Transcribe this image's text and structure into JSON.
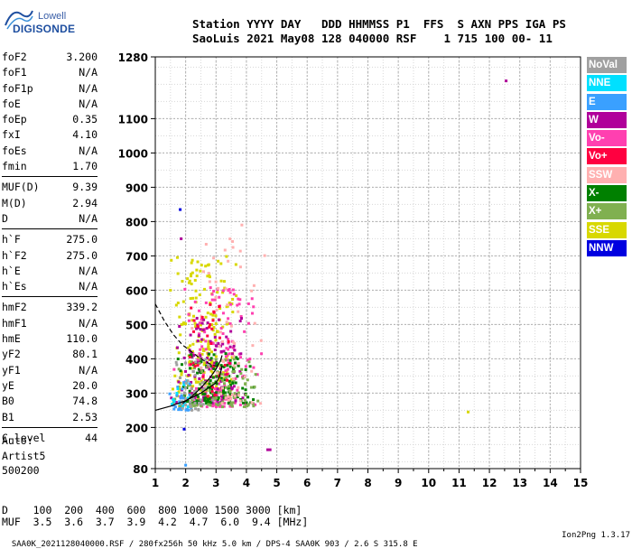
{
  "logo": {
    "line1": "Lowell",
    "line2": "DIGISONDE"
  },
  "header": {
    "line1": "Station YYYY DAY   DDD HHMMSS P1  FFS  S AXN PPS IGA PS",
    "line2": "SaoLuis 2021 May08 128 040000 RSF    1 715 100 00- 11"
  },
  "params": {
    "group1": [
      {
        "name": "foF2",
        "value": "3.200"
      },
      {
        "name": "foF1",
        "value": "N/A"
      },
      {
        "name": "foF1p",
        "value": "N/A"
      },
      {
        "name": "foE",
        "value": "N/A"
      },
      {
        "name": "foEp",
        "value": "0.35"
      },
      {
        "name": "fxI",
        "value": "4.10"
      },
      {
        "name": "foEs",
        "value": "N/A"
      },
      {
        "name": "fmin",
        "value": "1.70"
      }
    ],
    "group2": [
      {
        "name": "MUF(D)",
        "value": "9.39"
      },
      {
        "name": "M(D)",
        "value": "2.94"
      },
      {
        "name": "D",
        "value": "N/A"
      }
    ],
    "group3": [
      {
        "name": "h`F",
        "value": "275.0"
      },
      {
        "name": "h`F2",
        "value": "275.0"
      },
      {
        "name": "h`E",
        "value": "N/A"
      },
      {
        "name": "h`Es",
        "value": "N/A"
      }
    ],
    "group4": [
      {
        "name": "hmF2",
        "value": "339.2"
      },
      {
        "name": "hmF1",
        "value": "N/A"
      },
      {
        "name": "hmE",
        "value": "110.0"
      },
      {
        "name": "yF2",
        "value": "80.1"
      },
      {
        "name": "yF1",
        "value": "N/A"
      },
      {
        "name": "yE",
        "value": "20.0"
      },
      {
        "name": "B0",
        "value": "74.8"
      },
      {
        "name": "B1",
        "value": "2.53"
      }
    ],
    "group5": [
      {
        "name": "C-level",
        "value": "44"
      }
    ]
  },
  "auto": {
    "line1": "Auto:",
    "line2": "Artist5",
    "line3": "500200"
  },
  "legend": [
    {
      "label": "NoVal",
      "color": "#a0a0a0"
    },
    {
      "label": "NNE",
      "color": "#00e0ff"
    },
    {
      "label": "E",
      "color": "#3aa0ff"
    },
    {
      "label": "W",
      "color": "#b0009a"
    },
    {
      "label": "Vo-",
      "color": "#ff40b0"
    },
    {
      "label": "Vo+",
      "color": "#ff0040"
    },
    {
      "label": "SSW",
      "color": "#ffb0b0"
    },
    {
      "label": "X-",
      "color": "#008000"
    },
    {
      "label": "X+",
      "color": "#80b050"
    },
    {
      "label": "SSE",
      "color": "#d8d800"
    },
    {
      "label": "NNW",
      "color": "#0000e0"
    }
  ],
  "bottom": {
    "line1": "D    100  200  400  600  800 1000 1500 3000 [km]",
    "line2": "MUF  3.5  3.6  3.7  3.9  4.2  4.7  6.0  9.4 [MHz]"
  },
  "footer": {
    "left": "SAA0K_2021128040000.RSF / 280fx256h 50 kHz 5.0 km / DPS-4 SAA0K 903 / 2.6 S 315.8 E",
    "right": "Ion2Png 1.3.17"
  },
  "chart_data": {
    "type": "scatter",
    "xlim": [
      1,
      15
    ],
    "ylim": [
      80,
      1280
    ],
    "xticks": [
      1,
      2,
      3,
      4,
      5,
      6,
      7,
      8,
      9,
      10,
      11,
      12,
      13,
      14,
      15
    ],
    "yticks": [
      80,
      200,
      300,
      400,
      500,
      600,
      700,
      800,
      900,
      1000,
      1100,
      1280
    ],
    "grid": true,
    "scatter_clusters": [
      {
        "color": "#d8d800",
        "xmin": 1.4,
        "xmax": 3.8,
        "ymin": 280,
        "ymax": 700,
        "count": 220
      },
      {
        "color": "#ff40b0",
        "xmin": 1.6,
        "xmax": 4.6,
        "ymin": 260,
        "ymax": 620,
        "count": 160
      },
      {
        "color": "#b0009a",
        "xmin": 1.5,
        "xmax": 4.2,
        "ymin": 270,
        "ymax": 520,
        "count": 120
      },
      {
        "color": "#008000",
        "xmin": 1.6,
        "xmax": 4.4,
        "ymin": 270,
        "ymax": 420,
        "count": 130
      },
      {
        "color": "#80b050",
        "xmin": 1.5,
        "xmax": 4.7,
        "ymin": 260,
        "ymax": 400,
        "count": 90
      },
      {
        "color": "#ffb0b0",
        "xmin": 2.0,
        "xmax": 4.8,
        "ymin": 270,
        "ymax": 750,
        "count": 60
      },
      {
        "color": "#ff0040",
        "xmin": 1.7,
        "xmax": 3.6,
        "ymin": 290,
        "ymax": 560,
        "count": 40
      },
      {
        "color": "#3aa0ff",
        "xmin": 1.3,
        "xmax": 2.3,
        "ymin": 250,
        "ymax": 340,
        "count": 25
      },
      {
        "color": "#00e0ff",
        "xmin": 1.3,
        "xmax": 2.2,
        "ymin": 260,
        "ymax": 340,
        "count": 15
      },
      {
        "color": "#a0a0a0",
        "xmin": 1.4,
        "xmax": 3.0,
        "ymin": 250,
        "ymax": 400,
        "count": 40
      }
    ],
    "scatter_points": [
      {
        "x": 1.82,
        "y": 835,
        "color": "#0000e0"
      },
      {
        "x": 1.85,
        "y": 750,
        "color": "#b0009a"
      },
      {
        "x": 4.7,
        "y": 135,
        "color": "#b0009a"
      },
      {
        "x": 4.78,
        "y": 135,
        "color": "#b0009a"
      },
      {
        "x": 12.55,
        "y": 1210,
        "color": "#b0009a"
      },
      {
        "x": 11.3,
        "y": 245,
        "color": "#d8d800"
      },
      {
        "x": 2.0,
        "y": 90,
        "color": "#3aa0ff"
      },
      {
        "x": 1.95,
        "y": 195,
        "color": "#0000e0"
      },
      {
        "x": 3.85,
        "y": 790,
        "color": "#ffb0b0"
      }
    ],
    "profile_solid": {
      "x": [
        1.0,
        1.5,
        2.0,
        2.5,
        3.0,
        3.1,
        3.15,
        3.2
      ],
      "y": [
        250,
        262,
        278,
        300,
        330,
        345,
        360,
        380
      ]
    },
    "profile_solid2": {
      "x": [
        1.9,
        2.2,
        2.5,
        2.8,
        3.0,
        3.15,
        3.2
      ],
      "y": [
        270,
        290,
        315,
        345,
        370,
        395,
        410
      ]
    },
    "profile_dashed": {
      "x": [
        1.0,
        1.3,
        1.6,
        1.9,
        2.2,
        2.5,
        2.8,
        3.1
      ],
      "y": [
        560,
        510,
        470,
        440,
        420,
        400,
        385,
        375
      ]
    }
  }
}
